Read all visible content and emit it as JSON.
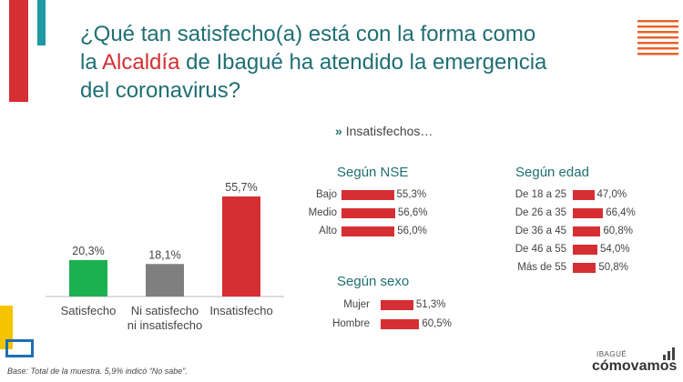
{
  "title": {
    "line1": "¿Qué tan satisfecho(a) está con la forma como",
    "line2_prefix": "la ",
    "line2_accent": "Alcaldía",
    "line2_suffix": " de Ibagué ha atendido la emergencia",
    "line3": "del coronavirus?"
  },
  "insatisfechos_heading": "Insatisfechos…",
  "footer": "Base: Total de la muestra. 5,9% indicó “No sabe”.",
  "logo": {
    "top": "IBAGUÉ",
    "main": "cómovamos"
  },
  "colors": {
    "accent": "#d62f33",
    "teal": "#1f6f73",
    "green": "#1db050",
    "gray": "#7f7f7f",
    "yellow": "#f5c400",
    "blue": "#1f6fb5",
    "orange": "#e8632a"
  },
  "chart_data": [
    {
      "type": "bar",
      "categories": [
        "Satisfecho",
        "Ni satisfecho ni insatisfecho",
        "Insatisfecho"
      ],
      "category_lines": [
        [
          "Satisfecho"
        ],
        [
          "Ni satisfecho",
          "ni insatisfecho"
        ],
        [
          "Insatisfecho"
        ]
      ],
      "values": [
        20.3,
        18.1,
        55.7
      ],
      "labels": [
        "20,3%",
        "18,1%",
        "55,7%"
      ],
      "colors": [
        "#1db050",
        "#7f7f7f",
        "#d62f33"
      ],
      "ylim": [
        0,
        60
      ]
    },
    {
      "type": "bar",
      "title": "Según NSE",
      "categories": [
        "Bajo",
        "Medio",
        "Alto"
      ],
      "values": [
        55.3,
        56.6,
        56.0
      ],
      "labels": [
        "55,3%",
        "56,6%",
        "56,0%"
      ]
    },
    {
      "type": "bar",
      "title": "Según sexo",
      "categories": [
        "Mujer",
        "Hombre"
      ],
      "values": [
        51.3,
        60.5
      ],
      "labels": [
        "51,3%",
        "60,5%"
      ]
    },
    {
      "type": "bar",
      "title": "Según edad",
      "categories": [
        "De 18 a 25",
        "De 26 a 35",
        "De 36 a 45",
        "De 46 a 55",
        "Más de 55"
      ],
      "values": [
        47.0,
        66.4,
        60.8,
        54.0,
        50.8
      ],
      "labels": [
        "47,0%",
        "66,4%",
        "60,8%",
        "54,0%",
        "50,8%"
      ]
    }
  ]
}
